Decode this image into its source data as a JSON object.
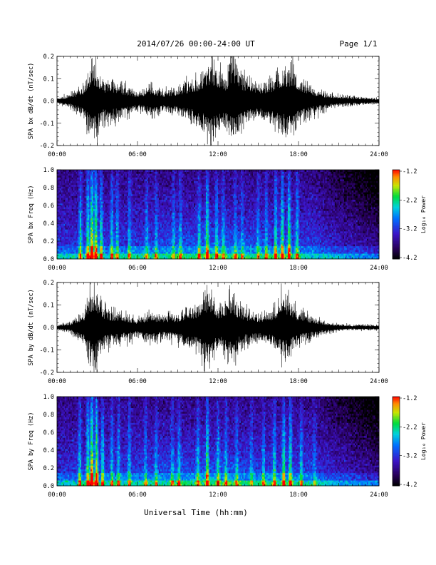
{
  "header": {
    "title": "2014/07/26  00:00-24:00 UT",
    "page": "Page 1/1"
  },
  "colorbar": {
    "label": "Log₁₀ Power",
    "ticks": [
      "-1.2",
      "-2.2",
      "-3.2",
      "-4.2"
    ]
  },
  "xlabel": "Universal Time (hh:mm)",
  "chart_data": [
    {
      "type": "line",
      "ylabel": "SPA bx dB/dt (nT/sec)",
      "ylim": [
        -0.2,
        0.2
      ],
      "yticks": [
        "0.2",
        "0.1",
        "0.0",
        "-0.1",
        "-0.2"
      ],
      "xticks": [
        "00:00",
        "06:00",
        "12:00",
        "18:00",
        "24:00"
      ],
      "xlim_hours": [
        0,
        24
      ],
      "series": [
        {
          "hours": [
            0,
            1,
            2,
            2.5,
            3,
            3.5,
            4,
            5,
            6,
            7,
            8,
            9,
            10,
            10.5,
            11,
            11.5,
            12,
            12.5,
            13,
            13.5,
            14,
            15,
            16,
            16.5,
            17,
            17.5,
            18,
            19,
            20,
            21,
            22,
            23,
            24
          ],
          "amplitude": [
            0.015,
            0.04,
            0.09,
            0.2,
            0.2,
            0.12,
            0.12,
            0.09,
            0.05,
            0.09,
            0.06,
            0.08,
            0.12,
            0.13,
            0.2,
            0.22,
            0.2,
            0.14,
            0.22,
            0.2,
            0.14,
            0.1,
            0.13,
            0.18,
            0.2,
            0.2,
            0.14,
            0.08,
            0.05,
            0.035,
            0.025,
            0.02,
            0.015
          ]
        }
      ]
    },
    {
      "type": "heatmap",
      "ylabel": "SPA bx Freq (Hz)",
      "ylim": [
        0,
        1.0
      ],
      "yticks": [
        "1.0",
        "0.8",
        "0.6",
        "0.4",
        "0.2",
        "0.0"
      ],
      "xticks": [
        "00:00",
        "06:00",
        "12:00",
        "18:00",
        "24:00"
      ],
      "zlim": [
        -4.2,
        -1.2
      ],
      "burst_hours": [
        1.75,
        2.3,
        2.6,
        2.9,
        3.3,
        4.1,
        4.5,
        5.4,
        6.7,
        7.4,
        8.7,
        9.2,
        10.6,
        11.2,
        11.9,
        12.4,
        13.3,
        13.8,
        15.0,
        15.6,
        16.3,
        16.8,
        17.3,
        17.9
      ],
      "burst_strength": [
        0.5,
        0.6,
        0.85,
        0.75,
        0.55,
        0.45,
        0.4,
        0.35,
        0.3,
        0.3,
        0.3,
        0.35,
        0.4,
        0.6,
        0.4,
        0.35,
        0.3,
        0.25,
        0.3,
        0.35,
        0.5,
        0.6,
        0.65,
        0.45
      ]
    },
    {
      "type": "line",
      "ylabel": "SPA by dB/dt (nT/sec)",
      "ylim": [
        -0.2,
        0.2
      ],
      "yticks": [
        "0.2",
        "0.1",
        "0.0",
        "-0.1",
        "-0.2"
      ],
      "xticks": [
        "00:00",
        "06:00",
        "12:00",
        "18:00",
        "24:00"
      ],
      "xlim_hours": [
        0,
        24
      ],
      "series": [
        {
          "hours": [
            0,
            1,
            2,
            2.5,
            3,
            3.5,
            4,
            5,
            6,
            7,
            8,
            9,
            10,
            10.5,
            11,
            11.5,
            12,
            12.5,
            13,
            13.5,
            14,
            15,
            16,
            16.5,
            17,
            17.5,
            18,
            19,
            20,
            21,
            22,
            23,
            24
          ],
          "amplitude": [
            0.015,
            0.03,
            0.1,
            0.2,
            0.2,
            0.12,
            0.1,
            0.08,
            0.05,
            0.09,
            0.06,
            0.08,
            0.12,
            0.14,
            0.22,
            0.22,
            0.12,
            0.16,
            0.2,
            0.14,
            0.1,
            0.08,
            0.1,
            0.15,
            0.2,
            0.14,
            0.1,
            0.06,
            0.035,
            0.02,
            0.015,
            0.015,
            0.015
          ]
        }
      ]
    },
    {
      "type": "heatmap",
      "ylabel": "SPA by Freq (Hz)",
      "ylim": [
        0,
        1.0
      ],
      "yticks": [
        "1.0",
        "0.8",
        "0.6",
        "0.4",
        "0.2",
        "0.0"
      ],
      "xticks": [
        "00:00",
        "06:00",
        "12:00",
        "18:00",
        "24:00"
      ],
      "zlim": [
        -4.2,
        -1.2
      ],
      "burst_hours": [
        1.7,
        2.3,
        2.6,
        2.95,
        3.4,
        4.1,
        4.6,
        5.4,
        6.6,
        7.4,
        8.6,
        9.1,
        10.5,
        11.2,
        12.0,
        12.6,
        13.4,
        14.5,
        15.4,
        16.2,
        16.9,
        17.4,
        18.2,
        19.2
      ],
      "burst_strength": [
        0.45,
        0.6,
        0.9,
        0.8,
        0.5,
        0.4,
        0.4,
        0.35,
        0.3,
        0.3,
        0.3,
        0.35,
        0.35,
        0.6,
        0.4,
        0.35,
        0.3,
        0.25,
        0.3,
        0.4,
        0.55,
        0.55,
        0.35,
        0.25
      ]
    }
  ]
}
